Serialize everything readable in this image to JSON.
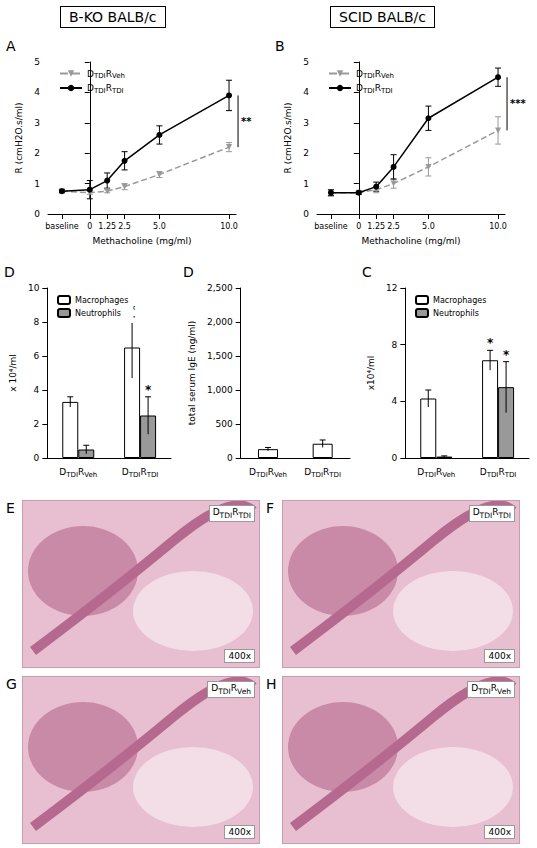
{
  "headers": [
    "B-KO BALB/c",
    "SCID BALB/c"
  ],
  "chart_data": [
    {
      "panel": "A",
      "type": "line",
      "xlabel": "Methacholine (mg/ml)",
      "ylabel": "R (cmH2O.s/ml)",
      "x": [
        -2,
        0,
        1.25,
        2.5,
        5,
        10
      ],
      "xlim": [
        -3,
        10.5
      ],
      "xticks": [
        {
          "value": -2,
          "label": "baseline"
        },
        0,
        1.25,
        2.5,
        {
          "value": 5,
          "label": "5.0"
        },
        {
          "value": 10,
          "label": "10.0"
        }
      ],
      "ylim": [
        0,
        5
      ],
      "yticks": [
        0,
        1,
        2,
        3,
        4,
        5
      ],
      "grid": false,
      "legend": "upper left",
      "significance": "**",
      "series": [
        {
          "name": "DTDIRVeh",
          "color": "#999999",
          "marker": "triangle-down",
          "line_style": "dashed",
          "values": [
            0.75,
            0.7,
            0.75,
            0.9,
            1.3,
            2.2
          ],
          "errors": [
            0.05,
            0.05,
            0.05,
            0.1,
            0.1,
            0.15
          ]
        },
        {
          "name": "DTDIRTDI",
          "color": "#000000",
          "marker": "circle",
          "line_style": "solid",
          "values": [
            0.75,
            0.8,
            1.1,
            1.75,
            2.6,
            3.9
          ],
          "errors": [
            0.05,
            0.3,
            0.25,
            0.3,
            0.3,
            0.5
          ]
        }
      ]
    },
    {
      "panel": "B",
      "type": "line",
      "xlabel": "Methacholine (mg/ml)",
      "ylabel": "R (cmH2O.s/ml)",
      "x": [
        -2,
        0,
        1.25,
        2.5,
        5,
        10
      ],
      "xlim": [
        -3,
        10.5
      ],
      "xticks": [
        {
          "value": -2,
          "label": "baseline"
        },
        0,
        1.25,
        2.5,
        {
          "value": 5,
          "label": "5.0"
        },
        {
          "value": 10,
          "label": "10.0"
        }
      ],
      "ylim": [
        0,
        5
      ],
      "yticks": [
        0,
        1,
        2,
        3,
        4,
        5
      ],
      "grid": false,
      "legend": "upper left",
      "significance": "***",
      "series": [
        {
          "name": "DTDIRVeh",
          "color": "#999999",
          "marker": "triangle-down",
          "line_style": "dashed",
          "values": [
            0.7,
            0.7,
            0.8,
            1.0,
            1.55,
            2.75
          ],
          "errors": [
            0.1,
            0.05,
            0.1,
            0.15,
            0.3,
            0.45
          ]
        },
        {
          "name": "DTDIRTDI",
          "color": "#000000",
          "marker": "circle",
          "line_style": "solid",
          "values": [
            0.7,
            0.7,
            0.9,
            1.55,
            3.15,
            4.5
          ],
          "errors": [
            0.1,
            0.05,
            0.15,
            0.4,
            0.4,
            0.3
          ]
        }
      ]
    },
    {
      "panel": "D",
      "type": "bar",
      "ylabel": "x 10⁴/ml",
      "categories": [
        "DTDIRVeh",
        "DTDIRTDI"
      ],
      "ylim": [
        0,
        10
      ],
      "yticks": [
        0,
        2,
        4,
        6,
        8,
        10
      ],
      "grid": false,
      "legend": "upper left",
      "series": [
        {
          "name": "Macrophages",
          "color": "#ffffff",
          "values": [
            3.3,
            6.5
          ],
          "errors": [
            0.3,
            1.8
          ],
          "marks": [
            null,
            "*"
          ]
        },
        {
          "name": "Neutrophils",
          "color": "#999999",
          "values": [
            0.5,
            2.5
          ],
          "errors": [
            0.25,
            1.1
          ],
          "marks": [
            null,
            "*"
          ]
        }
      ]
    },
    {
      "panel": "D",
      "type": "bar",
      "ylabel": "total serum IgE (ng/ml)",
      "categories": [
        "DTDIRVeh",
        "DTDIRTDI"
      ],
      "ylim": [
        0,
        2500
      ],
      "yticks": [
        0,
        500,
        1000,
        1500,
        2000,
        2500
      ],
      "grid": false,
      "color": "#ffffff",
      "values": [
        130,
        210
      ],
      "errors": [
        25,
        55
      ]
    },
    {
      "panel": "C",
      "type": "bar",
      "ylabel": "x10⁴/ml",
      "categories": [
        "DTDIRVeh",
        "DTDIRTDI"
      ],
      "ylim": [
        0,
        12
      ],
      "yticks": [
        0,
        4,
        8,
        12
      ],
      "grid": false,
      "legend": "upper left",
      "series": [
        {
          "name": "Macrophages",
          "color": "#ffffff",
          "values": [
            4.2,
            6.9
          ],
          "errors": [
            0.6,
            0.7
          ],
          "marks": [
            null,
            "*"
          ]
        },
        {
          "name": "Neutrophils",
          "color": "#999999",
          "values": [
            0.1,
            5.0
          ],
          "errors": [
            0.05,
            1.8
          ],
          "marks": [
            null,
            "*"
          ]
        }
      ]
    }
  ],
  "images": [
    {
      "panel": "E",
      "label": "DTDIRTDI",
      "magnification": "400x"
    },
    {
      "panel": "F",
      "label": "DTDIRTDI",
      "magnification": "400x"
    },
    {
      "panel": "G",
      "label": "DTDIRVeh",
      "magnification": "400x"
    },
    {
      "panel": "H",
      "label": "DTDIRVeh",
      "magnification": "400x"
    }
  ]
}
